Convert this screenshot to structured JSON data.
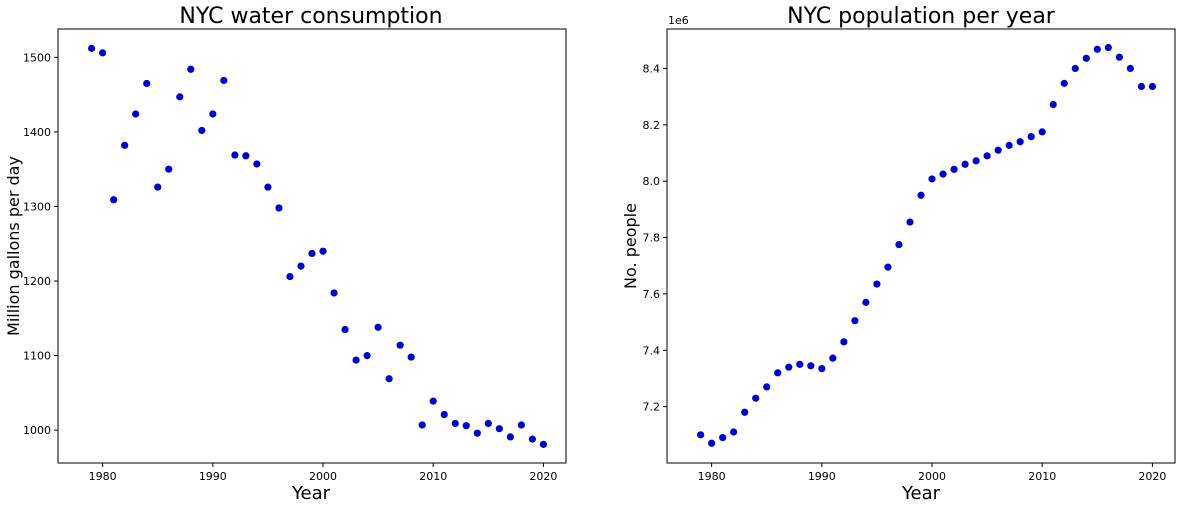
{
  "chart_data": [
    {
      "type": "scatter",
      "title": "NYC water consumption",
      "xlabel": "Year",
      "ylabel": "Million gallons per day",
      "xlim": [
        1975.95,
        2022.05
      ],
      "ylim": [
        956,
        1538
      ],
      "xticks": [
        1980,
        1990,
        2000,
        2010,
        2020
      ],
      "yticks": [
        1000,
        1100,
        1200,
        1300,
        1400,
        1500
      ],
      "color": "#0000cc",
      "grid": false,
      "x": [
        1979,
        1980,
        1981,
        1982,
        1983,
        1984,
        1985,
        1986,
        1987,
        1988,
        1989,
        1990,
        1991,
        1992,
        1993,
        1994,
        1995,
        1996,
        1997,
        1998,
        1999,
        2000,
        2001,
        2002,
        2003,
        2004,
        2005,
        2006,
        2007,
        2008,
        2009,
        2010,
        2011,
        2012,
        2013,
        2014,
        2015,
        2016,
        2017,
        2018,
        2019,
        2020
      ],
      "y": [
        1512,
        1506,
        1309,
        1382,
        1424,
        1465,
        1326,
        1350,
        1447,
        1484,
        1402,
        1424,
        1469,
        1369,
        1368,
        1357,
        1326,
        1298,
        1206,
        1220,
        1237,
        1240,
        1184,
        1135,
        1094,
        1100,
        1138,
        1069,
        1114,
        1098,
        1007,
        1039,
        1021,
        1009,
        1006,
        996,
        1009,
        1002,
        991,
        1007,
        988,
        981
      ]
    },
    {
      "type": "scatter",
      "title": "NYC population per year",
      "xlabel": "Year",
      "ylabel": "No. people",
      "offset_text": "1e6",
      "xlim": [
        1975.95,
        2022.05
      ],
      "ylim": [
        7.0,
        8.54
      ],
      "xticks": [
        1980,
        1990,
        2000,
        2010,
        2020
      ],
      "yticks": [
        7.2,
        7.4,
        7.6,
        7.8,
        8.0,
        8.2,
        8.4
      ],
      "color": "#0000cc",
      "grid": false,
      "x": [
        1979,
        1980,
        1981,
        1982,
        1983,
        1984,
        1985,
        1986,
        1987,
        1988,
        1989,
        1990,
        1991,
        1992,
        1993,
        1994,
        1995,
        1996,
        1997,
        1998,
        1999,
        2000,
        2001,
        2002,
        2003,
        2004,
        2005,
        2006,
        2007,
        2008,
        2009,
        2010,
        2011,
        2012,
        2013,
        2014,
        2015,
        2016,
        2017,
        2018,
        2019,
        2020
      ],
      "y": [
        7.1,
        7.07,
        7.09,
        7.11,
        7.18,
        7.23,
        7.27,
        7.32,
        7.34,
        7.35,
        7.345,
        7.335,
        7.372,
        7.43,
        7.505,
        7.57,
        7.635,
        7.695,
        7.775,
        7.855,
        7.95,
        8.008,
        8.025,
        8.042,
        8.06,
        8.072,
        8.09,
        8.11,
        8.127,
        8.14,
        8.158,
        8.175,
        8.272,
        8.347,
        8.4,
        8.436,
        8.468,
        8.474,
        8.44,
        8.4,
        8.336,
        8.336
      ]
    }
  ]
}
